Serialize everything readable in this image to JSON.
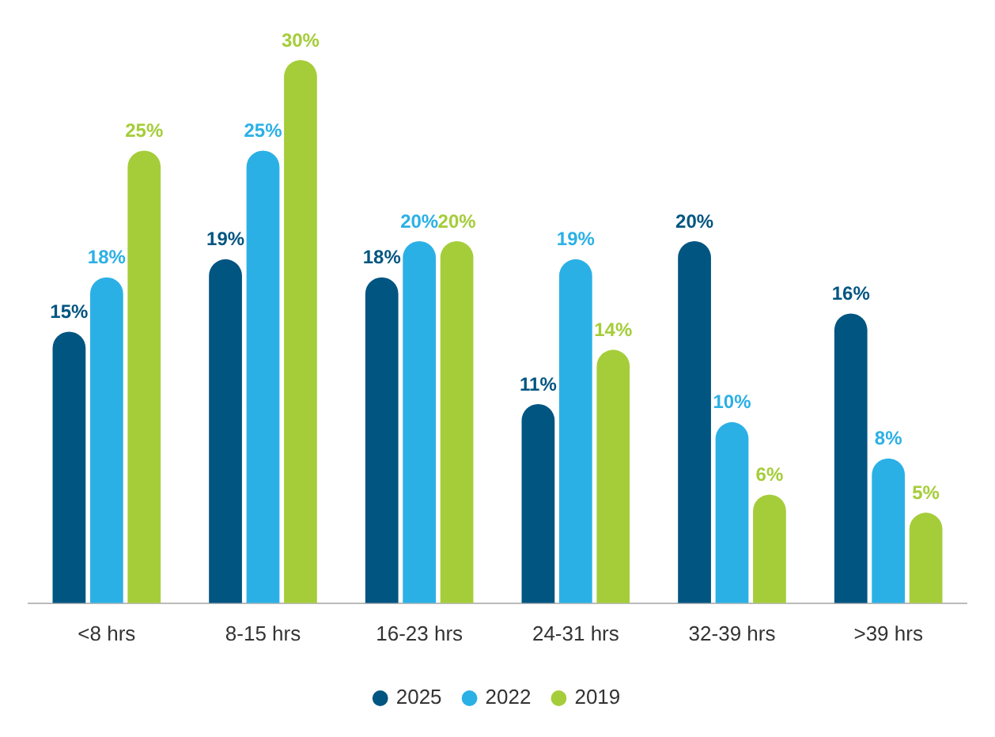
{
  "chart_data": {
    "type": "bar",
    "categories": [
      "<8 hrs",
      "8-15 hrs",
      "16-23 hrs",
      "24-31 hrs",
      "32-39 hrs",
      ">39 hrs"
    ],
    "series": [
      {
        "name": "2025",
        "color": "#005581",
        "values": [
          15,
          19,
          18,
          11,
          20,
          16
        ],
        "value_labels": [
          "15%",
          "19%",
          "18%",
          "11%",
          "20%",
          "16%"
        ]
      },
      {
        "name": "2022",
        "color": "#2bb0e6",
        "values": [
          18,
          25,
          20,
          19,
          10,
          8
        ],
        "value_labels": [
          "18%",
          "25%",
          "20%",
          "19%",
          "10%",
          "8%"
        ]
      },
      {
        "name": "2019",
        "color": "#a5cd39",
        "values": [
          25,
          30,
          20,
          14,
          6,
          5
        ],
        "value_labels": [
          "25%",
          "30%",
          "20%",
          "14%",
          "6%",
          "5%"
        ]
      }
    ],
    "legend": "bottom",
    "grid": false
  }
}
